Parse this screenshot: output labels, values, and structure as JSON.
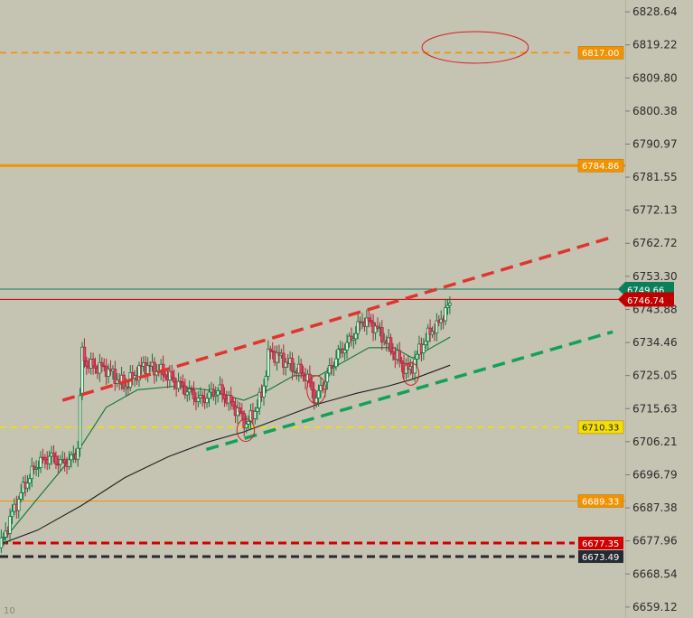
{
  "chart_data": {
    "type": "candlestick",
    "y_axis": {
      "ticks": [
        "6828.64",
        "6819.22",
        "6809.80",
        "6800.38",
        "6790.97",
        "6781.55",
        "6772.13",
        "6762.72",
        "6753.30",
        "6743.88",
        "6734.46",
        "6725.05",
        "6715.63",
        "6706.21",
        "6696.79",
        "6687.38",
        "6677.96",
        "6668.54",
        "6659.12"
      ],
      "range": [
        6656,
        6832
      ]
    },
    "x_axis": {
      "corner_label": "10"
    },
    "price_levels": [
      {
        "label": "6817.00",
        "value": 6817.0,
        "color": "#f29200",
        "style": "dashed"
      },
      {
        "label": "6784.86",
        "value": 6784.86,
        "color": "#f29200",
        "style": "solid-thick"
      },
      {
        "label": "6749.66",
        "value": 6749.66,
        "color": "#0a7f5a",
        "style": "solid-thin"
      },
      {
        "label": "6746.74",
        "value": 6746.74,
        "color": "#c00000",
        "style": "solid-thin"
      },
      {
        "label": "6710.33",
        "value": 6710.33,
        "color": "#f3e000",
        "style": "dashed"
      },
      {
        "label": "6689.33",
        "value": 6689.33,
        "color": "#f29200",
        "style": "solid-thin"
      },
      {
        "label": "6677.35",
        "value": 6677.35,
        "color": "#d00000",
        "style": "dashed-thick"
      },
      {
        "label": "6673.49",
        "value": 6673.49,
        "color": "#262b33",
        "style": "dashed-thick"
      }
    ],
    "trendlines": [
      {
        "name": "upper channel",
        "color": "#e0342e",
        "start": [
          0.1,
          6718.0
        ],
        "end": [
          0.98,
          6764.5
        ]
      },
      {
        "name": "lower channel",
        "color": "#12a05a",
        "start": [
          0.33,
          6704.0
        ],
        "end": [
          0.98,
          6737.5
        ]
      }
    ],
    "circles": [
      {
        "x": 0.76,
        "value": 6818.5,
        "rx": 0.085,
        "ry": 4.5
      },
      {
        "x": 0.393,
        "value": 6709.5,
        "rx": 0.014,
        "ry": 3.2
      },
      {
        "x": 0.506,
        "value": 6721.0,
        "rx": 0.015,
        "ry": 4.0
      },
      {
        "x": 0.657,
        "value": 6725.5,
        "rx": 0.013,
        "ry": 3.2
      }
    ],
    "price_path": [
      [
        0.0,
        6676
      ],
      [
        0.02,
        6686
      ],
      [
        0.04,
        6694
      ],
      [
        0.06,
        6700
      ],
      [
        0.08,
        6702
      ],
      [
        0.1,
        6700
      ],
      [
        0.12,
        6702
      ],
      [
        0.126,
        6706
      ],
      [
        0.13,
        6732
      ],
      [
        0.14,
        6728
      ],
      [
        0.17,
        6727
      ],
      [
        0.2,
        6722
      ],
      [
        0.23,
        6728
      ],
      [
        0.26,
        6726
      ],
      [
        0.29,
        6722
      ],
      [
        0.32,
        6718
      ],
      [
        0.35,
        6721
      ],
      [
        0.38,
        6715
      ],
      [
        0.395,
        6711
      ],
      [
        0.41,
        6716
      ],
      [
        0.42,
        6720
      ],
      [
        0.43,
        6732
      ],
      [
        0.45,
        6730
      ],
      [
        0.47,
        6727
      ],
      [
        0.49,
        6725
      ],
      [
        0.505,
        6718
      ],
      [
        0.52,
        6724
      ],
      [
        0.54,
        6731
      ],
      [
        0.56,
        6735
      ],
      [
        0.58,
        6741
      ],
      [
        0.6,
        6739
      ],
      [
        0.62,
        6734
      ],
      [
        0.64,
        6729
      ],
      [
        0.655,
        6726
      ],
      [
        0.67,
        6732
      ],
      [
        0.69,
        6738
      ],
      [
        0.7,
        6739
      ],
      [
        0.71,
        6743
      ],
      [
        0.72,
        6745
      ]
    ],
    "ma_fast": [
      [
        0.0,
        6677
      ],
      [
        0.06,
        6690
      ],
      [
        0.13,
        6705
      ],
      [
        0.17,
        6716
      ],
      [
        0.22,
        6721
      ],
      [
        0.28,
        6722
      ],
      [
        0.33,
        6721
      ],
      [
        0.39,
        6718
      ],
      [
        0.43,
        6721
      ],
      [
        0.47,
        6725
      ],
      [
        0.51,
        6725
      ],
      [
        0.55,
        6729
      ],
      [
        0.59,
        6733
      ],
      [
        0.63,
        6733
      ],
      [
        0.66,
        6730
      ],
      [
        0.69,
        6733
      ],
      [
        0.72,
        6736
      ]
    ],
    "ma_slow": [
      [
        0.0,
        6677
      ],
      [
        0.06,
        6681
      ],
      [
        0.13,
        6688
      ],
      [
        0.2,
        6696
      ],
      [
        0.27,
        6702
      ],
      [
        0.33,
        6706
      ],
      [
        0.39,
        6709
      ],
      [
        0.45,
        6713
      ],
      [
        0.51,
        6717
      ],
      [
        0.57,
        6720
      ],
      [
        0.62,
        6722
      ],
      [
        0.66,
        6724
      ],
      [
        0.72,
        6728
      ]
    ]
  }
}
